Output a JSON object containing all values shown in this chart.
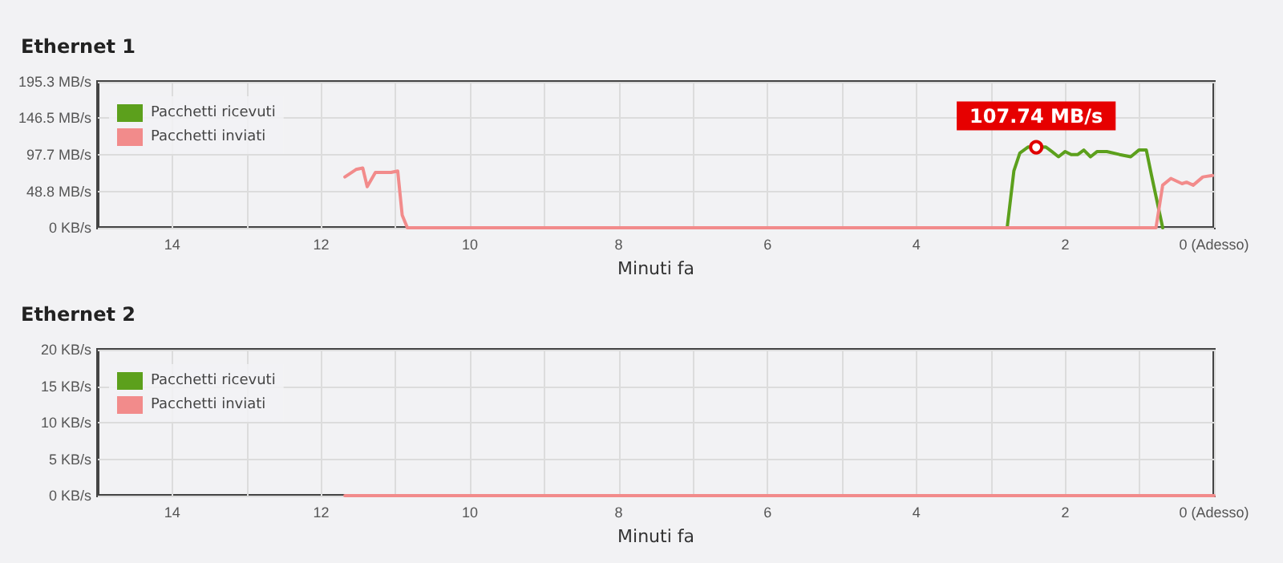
{
  "chart_data": [
    {
      "type": "line",
      "title": "Ethernet 1",
      "xlabel": "Minuti fa",
      "xlim": [
        15,
        0
      ],
      "xticks": [
        {
          "value": 14,
          "label": "14"
        },
        {
          "value": 13,
          "label": null
        },
        {
          "value": 12,
          "label": "12"
        },
        {
          "value": 11,
          "label": null
        },
        {
          "value": 10,
          "label": "10"
        },
        {
          "value": 9,
          "label": null
        },
        {
          "value": 8,
          "label": "8"
        },
        {
          "value": 7,
          "label": null
        },
        {
          "value": 6,
          "label": "6"
        },
        {
          "value": 5,
          "label": null
        },
        {
          "value": 4,
          "label": "4"
        },
        {
          "value": 3,
          "label": null
        },
        {
          "value": 2,
          "label": "2"
        },
        {
          "value": 1,
          "label": null
        },
        {
          "value": 0,
          "label": "0 (Adesso)"
        }
      ],
      "ylim": [
        0,
        195.3
      ],
      "yticks": [
        {
          "value": 0,
          "label": "0 KB/s"
        },
        {
          "value": 48.8,
          "label": "48.8 MB/s"
        },
        {
          "value": 97.7,
          "label": "97.7 MB/s"
        },
        {
          "value": 146.5,
          "label": "146.5 MB/s"
        },
        {
          "value": 195.3,
          "label": "195.3 MB/s"
        }
      ],
      "grid": true,
      "legend": "top left",
      "marker": "none",
      "line_style": "solid",
      "annotations": [
        {
          "text": "107.74 MB/s",
          "x": 2.39,
          "y": 107.74
        }
      ],
      "series": [
        {
          "name": "Pacchetti ricevuti",
          "color": "#5ca01c",
          "x": [
            2.78,
            2.69,
            2.61,
            2.5,
            2.39,
            2.26,
            2.18,
            2.09,
            2.0,
            1.92,
            1.83,
            1.75,
            1.66,
            1.57,
            1.44,
            1.27,
            1.12,
            1.01,
            0.91,
            0.84,
            0.69
          ],
          "values": [
            0,
            76,
            100,
            108,
            107.74,
            108,
            102,
            95,
            102,
            98,
            98,
            104,
            95,
            102,
            102,
            98,
            95,
            104,
            104,
            70,
            0
          ]
        },
        {
          "name": "Pacchetti inviati",
          "color": "#f28b8b",
          "x": [
            11.68,
            11.53,
            11.44,
            11.38,
            11.27,
            11.14,
            11.06,
            10.97,
            10.91,
            10.84,
            0.78,
            0.69,
            0.58,
            0.43,
            0.37,
            0.28,
            0.15,
            0.02
          ],
          "values": [
            68,
            78,
            80,
            55,
            74,
            74,
            74,
            76,
            17,
            0,
            0,
            57,
            66,
            59,
            61,
            57,
            68,
            70
          ]
        }
      ]
    },
    {
      "type": "line",
      "title": "Ethernet 2",
      "xlabel": "Minuti fa",
      "xlim": [
        15,
        0
      ],
      "xticks": [
        {
          "value": 14,
          "label": "14"
        },
        {
          "value": 13,
          "label": null
        },
        {
          "value": 12,
          "label": "12"
        },
        {
          "value": 11,
          "label": null
        },
        {
          "value": 10,
          "label": "10"
        },
        {
          "value": 9,
          "label": null
        },
        {
          "value": 8,
          "label": "8"
        },
        {
          "value": 7,
          "label": null
        },
        {
          "value": 6,
          "label": "6"
        },
        {
          "value": 5,
          "label": null
        },
        {
          "value": 4,
          "label": "4"
        },
        {
          "value": 3,
          "label": null
        },
        {
          "value": 2,
          "label": "2"
        },
        {
          "value": 1,
          "label": null
        },
        {
          "value": 0,
          "label": "0 (Adesso)"
        }
      ],
      "ylim": [
        0,
        20
      ],
      "yticks": [
        {
          "value": 0,
          "label": "0 KB/s"
        },
        {
          "value": 5,
          "label": "5 KB/s"
        },
        {
          "value": 10,
          "label": "10 KB/s"
        },
        {
          "value": 15,
          "label": "15 KB/s"
        },
        {
          "value": 20,
          "label": "20 KB/s"
        }
      ],
      "grid": true,
      "legend": "top left",
      "marker": "none",
      "line_style": "solid",
      "series": [
        {
          "name": "Pacchetti ricevuti",
          "color": "#5ca01c"
        },
        {
          "name": "Pacchetti inviati",
          "color": "#f28b8b",
          "x": [
            11.68,
            0
          ],
          "values": [
            0,
            0
          ]
        }
      ]
    }
  ]
}
